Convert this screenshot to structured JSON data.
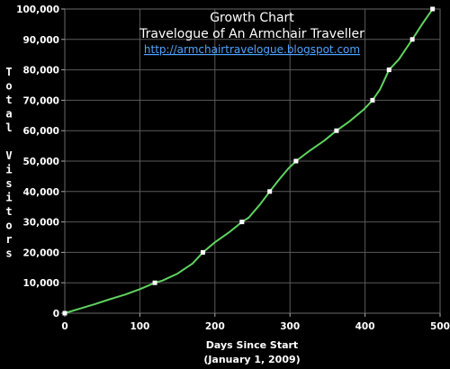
{
  "chart_data": {
    "type": "line",
    "title": "Growth Chart",
    "subtitle": "Travelogue of An Armchair Traveller",
    "url": "http://armchairtravelogue.blogspot.com",
    "xlabel_line1": "Days Since Start",
    "xlabel_line2": "(January 1, 2009)",
    "ylabel": "Total Visitors",
    "xlim": [
      0,
      500
    ],
    "ylim": [
      0,
      100000
    ],
    "x_ticks": [
      "0",
      "100",
      "200",
      "300",
      "400",
      "500"
    ],
    "y_ticks": [
      "0",
      "10,000",
      "20,000",
      "30,000",
      "40,000",
      "50,000",
      "60,000",
      "70,000",
      "80,000",
      "90,000",
      "100,000"
    ],
    "grid": true,
    "line_color": "#5fd35f",
    "marker_color": "#ffffff",
    "curve": {
      "x": [
        0,
        20,
        40,
        60,
        80,
        100,
        120,
        130,
        150,
        170,
        184,
        200,
        220,
        236,
        245,
        260,
        273,
        285,
        298,
        308,
        325,
        345,
        362,
        380,
        398,
        410,
        420,
        432,
        445,
        463,
        476,
        490
      ],
      "y": [
        0,
        1500,
        3000,
        4600,
        6100,
        7900,
        10000,
        10700,
        13000,
        16300,
        20000,
        23300,
        26800,
        30000,
        31400,
        35700,
        40000,
        43800,
        47600,
        50000,
        53200,
        56600,
        60000,
        63200,
        66900,
        70000,
        73600,
        80000,
        83400,
        90000,
        95000,
        100000
      ]
    },
    "markers": {
      "x": [
        0,
        120,
        184,
        236,
        273,
        308,
        362,
        410,
        432,
        463,
        490
      ],
      "y": [
        0,
        10000,
        20000,
        30000,
        40000,
        50000,
        60000,
        70000,
        80000,
        90000,
        100000
      ]
    }
  }
}
